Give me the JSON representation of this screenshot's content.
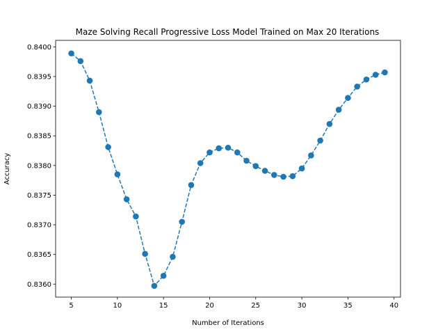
{
  "chart_data": {
    "type": "line",
    "title": "Maze Solving Recall Progressive Loss Model Trained on Max 20 Iterations",
    "xlabel": "Number of Iterations",
    "ylabel": "Accuracy",
    "xlim": [
      3.3,
      40.7
    ],
    "ylim": [
      0.83578,
      0.84011
    ],
    "xticks": [
      5,
      10,
      15,
      20,
      25,
      30,
      35,
      40
    ],
    "yticks": [
      0.836,
      0.8365,
      0.837,
      0.8375,
      0.838,
      0.8385,
      0.839,
      0.8395,
      0.84
    ],
    "ytick_labels": [
      "0.8360",
      "0.8365",
      "0.8370",
      "0.8375",
      "0.8380",
      "0.8385",
      "0.8390",
      "0.8395",
      "0.8400"
    ],
    "grid": false,
    "series": [
      {
        "color": "#1f77b4",
        "line_style": "dashed",
        "marker": "circle",
        "x": [
          5,
          6,
          7,
          8,
          9,
          10,
          11,
          12,
          13,
          14,
          15,
          16,
          17,
          18,
          19,
          20,
          21,
          22,
          23,
          24,
          25,
          26,
          27,
          28,
          29,
          30,
          31,
          32,
          33,
          34,
          35,
          36,
          37,
          38,
          39
        ],
        "y": [
          0.83989,
          0.83976,
          0.83943,
          0.8389,
          0.83831,
          0.83785,
          0.83743,
          0.83714,
          0.83651,
          0.83597,
          0.83614,
          0.83646,
          0.83705,
          0.83767,
          0.83804,
          0.83822,
          0.83829,
          0.8383,
          0.83822,
          0.83808,
          0.83799,
          0.83791,
          0.83784,
          0.83781,
          0.83782,
          0.83795,
          0.83817,
          0.83842,
          0.8387,
          0.83894,
          0.83914,
          0.83933,
          0.83945,
          0.83953,
          0.83957
        ]
      }
    ]
  }
}
